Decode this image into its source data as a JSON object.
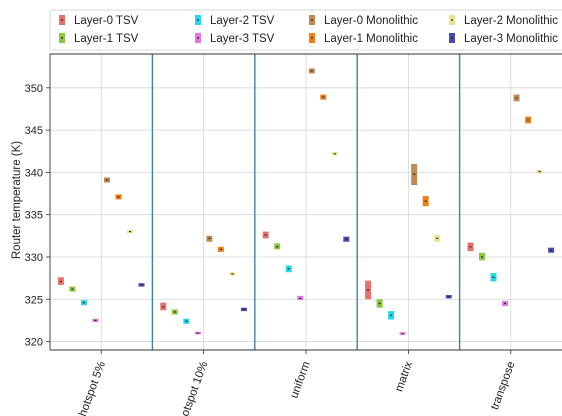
{
  "chart_data": {
    "type": "box",
    "title": "",
    "xlabel": "",
    "ylabel": "Router temperature (K)",
    "ylim": [
      319,
      354
    ],
    "yticks": [
      320,
      325,
      330,
      335,
      340,
      345,
      350
    ],
    "grid": true,
    "legend_position": "top",
    "categories": [
      "hotspot 5%",
      "hotspot 10%",
      "uniform",
      "matrix",
      "transpose"
    ],
    "series": [
      {
        "name": "Layer-0 TSV",
        "color": "#e8706a",
        "values": [
          {
            "mid": 327.1,
            "lo": 326.7,
            "hi": 327.6
          },
          {
            "mid": 324.1,
            "lo": 323.7,
            "hi": 324.6
          },
          {
            "mid": 332.6,
            "lo": 332.2,
            "hi": 333.0
          },
          {
            "mid": 326.1,
            "lo": 325.0,
            "hi": 327.2
          },
          {
            "mid": 331.2,
            "lo": 330.7,
            "hi": 331.7
          }
        ]
      },
      {
        "name": "Layer-1 TSV",
        "color": "#8fc641",
        "values": [
          {
            "mid": 326.2,
            "lo": 325.9,
            "hi": 326.5
          },
          {
            "mid": 323.5,
            "lo": 323.2,
            "hi": 323.8
          },
          {
            "mid": 331.2,
            "lo": 330.9,
            "hi": 331.6
          },
          {
            "mid": 324.5,
            "lo": 324.0,
            "hi": 325.0
          },
          {
            "mid": 330.0,
            "lo": 329.6,
            "hi": 330.5
          }
        ]
      },
      {
        "name": "Layer-2 TSV",
        "color": "#25d8e8",
        "values": [
          {
            "mid": 324.6,
            "lo": 324.3,
            "hi": 324.9
          },
          {
            "mid": 322.4,
            "lo": 322.1,
            "hi": 322.7
          },
          {
            "mid": 328.6,
            "lo": 328.2,
            "hi": 329.0
          },
          {
            "mid": 323.1,
            "lo": 322.6,
            "hi": 323.6
          },
          {
            "mid": 327.6,
            "lo": 327.1,
            "hi": 328.1
          }
        ]
      },
      {
        "name": "Layer-3 TSV",
        "color": "#e675e2",
        "values": [
          {
            "mid": 322.5,
            "lo": 322.3,
            "hi": 322.7
          },
          {
            "mid": 321.0,
            "lo": 320.9,
            "hi": 321.1
          },
          {
            "mid": 325.1,
            "lo": 324.9,
            "hi": 325.4
          },
          {
            "mid": 320.9,
            "lo": 320.8,
            "hi": 321.1
          },
          {
            "mid": 324.5,
            "lo": 324.2,
            "hi": 324.8
          }
        ]
      },
      {
        "name": "Layer-0 Monolithic",
        "color": "#c08a55",
        "values": [
          {
            "mid": 339.1,
            "lo": 338.8,
            "hi": 339.4
          },
          {
            "mid": 332.2,
            "lo": 331.8,
            "hi": 332.5
          },
          {
            "mid": 352.0,
            "lo": 351.7,
            "hi": 352.3
          },
          {
            "mid": 339.8,
            "lo": 338.5,
            "hi": 341.0
          },
          {
            "mid": 348.8,
            "lo": 348.4,
            "hi": 349.2
          }
        ]
      },
      {
        "name": "Layer-1 Monolithic",
        "color": "#f07e14",
        "values": [
          {
            "mid": 337.1,
            "lo": 336.8,
            "hi": 337.4
          },
          {
            "mid": 330.9,
            "lo": 330.6,
            "hi": 331.2
          },
          {
            "mid": 348.9,
            "lo": 348.6,
            "hi": 349.2
          },
          {
            "mid": 336.6,
            "lo": 336.0,
            "hi": 337.2
          },
          {
            "mid": 346.2,
            "lo": 345.8,
            "hi": 346.6
          }
        ]
      },
      {
        "name": "Layer-2 Monolithic",
        "color": "#e9e48e",
        "values": [
          {
            "mid": 333.0,
            "lo": 332.8,
            "hi": 333.2
          },
          {
            "mid": 328.0,
            "lo": 327.8,
            "hi": 328.2
          },
          {
            "mid": 342.2,
            "lo": 342.0,
            "hi": 342.4
          },
          {
            "mid": 332.2,
            "lo": 331.8,
            "hi": 332.6
          },
          {
            "mid": 340.1,
            "lo": 339.9,
            "hi": 340.3
          }
        ]
      },
      {
        "name": "Layer-3 Monolithic",
        "color": "#4a49b4",
        "values": [
          {
            "mid": 326.7,
            "lo": 326.5,
            "hi": 326.9
          },
          {
            "mid": 323.8,
            "lo": 323.6,
            "hi": 324.0
          },
          {
            "mid": 332.1,
            "lo": 331.8,
            "hi": 332.4
          },
          {
            "mid": 325.3,
            "lo": 325.1,
            "hi": 325.5
          },
          {
            "mid": 330.8,
            "lo": 330.5,
            "hi": 331.1
          }
        ]
      }
    ]
  }
}
